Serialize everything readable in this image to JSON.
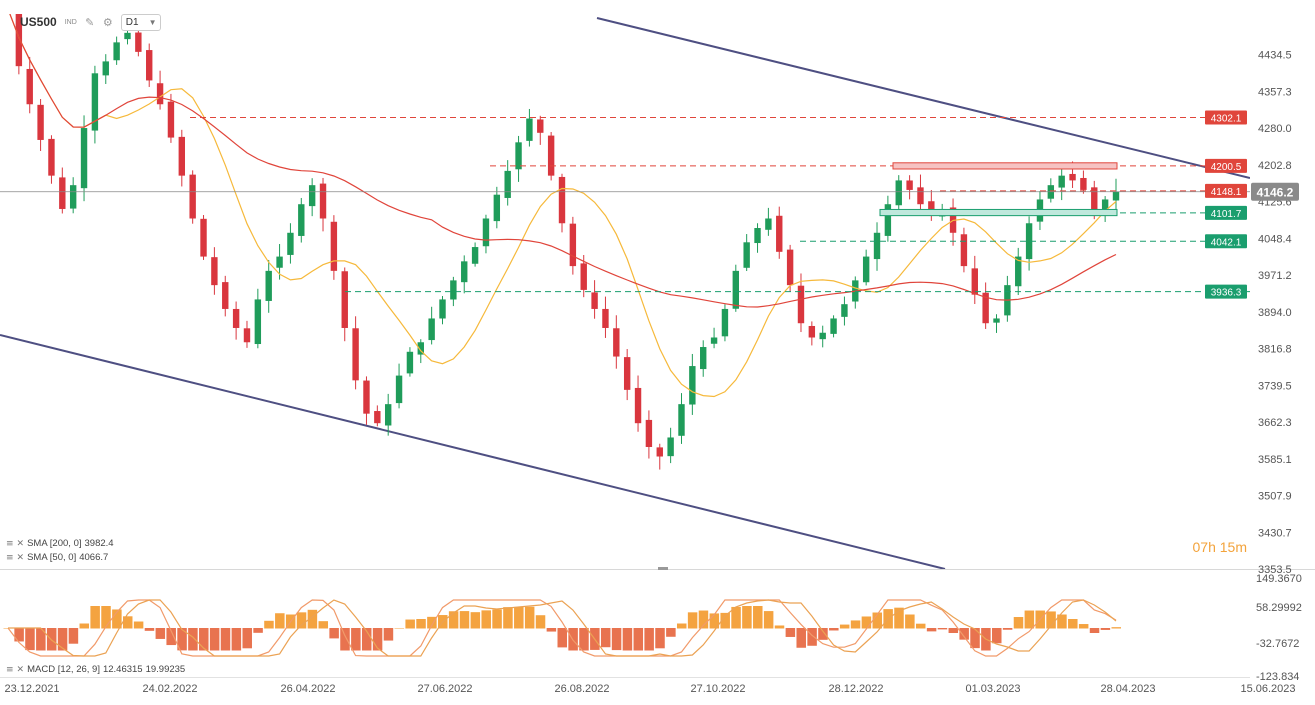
{
  "header": {
    "symbol": "US500",
    "type_badge": "IND",
    "timeframe": "D1",
    "icons": [
      "draw-icon",
      "settings-icon"
    ]
  },
  "timer": {
    "label": "07h 15m"
  },
  "indicators": [
    {
      "label": "SMA [200, 0]",
      "value": "3982.4"
    },
    {
      "label": "SMA [50, 0]",
      "value": "4066.7"
    }
  ],
  "macd": {
    "label": "MACD [12, 26, 9]",
    "value1": "12.46315",
    "value2": "19.99235"
  },
  "colors": {
    "bull": "#1f9c5a",
    "bear": "#d9363e",
    "sma200": "#e0453b",
    "sma50": "#f6b93b",
    "trend": "#4e4f82",
    "hist_pos": "#f4a340",
    "hist_neg": "#e8734f",
    "macd_line": "#f19a6a",
    "signal_line": "#eba253"
  },
  "chart_data": {
    "type": "candlestick",
    "timeframe": "D1",
    "price_ticks": [
      "4434.5",
      "4357.3",
      "4280.0",
      "4202.8",
      "4125.6",
      "4048.4",
      "3971.2",
      "3894.0",
      "3816.8",
      "3739.5",
      "3662.3",
      "3585.1",
      "3507.9",
      "3430.7",
      "3353.5"
    ],
    "date_ticks": [
      "23.12.2021",
      "24.02.2022",
      "26.04.2022",
      "27.06.2022",
      "26.08.2022",
      "27.10.2022",
      "28.12.2022",
      "01.03.2023",
      "28.04.2023",
      "15.06.2023"
    ],
    "y_range": [
      3353.5,
      4470
    ],
    "current_price": "4146.2",
    "levels": [
      {
        "value": "4302.1",
        "kind": "resistance"
      },
      {
        "value": "4200.5",
        "kind": "resistance"
      },
      {
        "value": "4148.1",
        "kind": "resistance"
      },
      {
        "value": "4101.7",
        "kind": "support"
      },
      {
        "value": "4042.1",
        "kind": "support"
      },
      {
        "value": "3936.3",
        "kind": "support"
      }
    ],
    "sma200_last": 3982.4,
    "sma50_last": 4066.7,
    "closes": [
      4530,
      4410,
      4330,
      4255,
      4180,
      4110,
      4160,
      4280,
      4395,
      4420,
      4460,
      4480,
      4440,
      4380,
      4330,
      4260,
      4180,
      4090,
      4010,
      3950,
      3900,
      3860,
      3830,
      3920,
      3980,
      4010,
      4060,
      4120,
      4160,
      4090,
      3980,
      3860,
      3750,
      3680,
      3660,
      3700,
      3760,
      3810,
      3830,
      3880,
      3920,
      3960,
      4000,
      4030,
      4090,
      4140,
      4190,
      4250,
      4300,
      4270,
      4180,
      4080,
      3990,
      3940,
      3900,
      3860,
      3800,
      3730,
      3660,
      3610,
      3590,
      3630,
      3700,
      3780,
      3820,
      3840,
      3900,
      3980,
      4040,
      4070,
      4090,
      4020,
      3950,
      3870,
      3840,
      3850,
      3880,
      3910,
      3960,
      4010,
      4060,
      4120,
      4170,
      4150,
      4120,
      4100,
      4110,
      4060,
      3990,
      3930,
      3870,
      3880,
      3950,
      4010,
      4080,
      4130,
      4160,
      4180,
      4170,
      4150,
      4100,
      4130,
      4146
    ],
    "macd": {
      "axis_ticks": [
        "149.3670",
        "58.29992",
        "-32.7672",
        "-123.834"
      ],
      "range": [
        -123.834,
        149.367
      ]
    }
  }
}
